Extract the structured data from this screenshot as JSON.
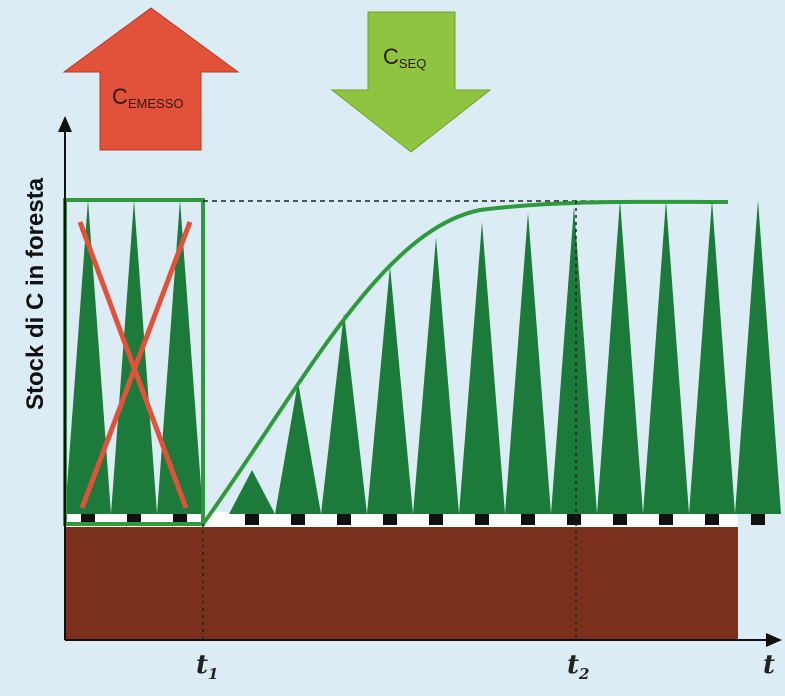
{
  "arrows": {
    "emitted": {
      "label_main": "C",
      "label_sub": "EMESSO",
      "color": "#e2513a"
    },
    "sequestered": {
      "label_main": "C",
      "label_sub": "SEQ",
      "color": "#8fc441"
    }
  },
  "axes": {
    "ylabel": "Stock di C in foresta",
    "xlabel": "t",
    "t1": {
      "main": "t",
      "sub": "1"
    },
    "t2": {
      "main": "t",
      "sub": "2"
    }
  },
  "colors": {
    "background": "#dcecf5",
    "tree": "#1c7a3a",
    "curve": "#2f9a3c",
    "soil": "#7b301c",
    "cross": "#e2513a"
  },
  "trees_before_count": 3,
  "trees_after_relative_heights": [
    0.14,
    0.42,
    0.64,
    0.79,
    0.88,
    0.93,
    0.96,
    0.98,
    1.0,
    1.0,
    1.0,
    1.0
  ]
}
